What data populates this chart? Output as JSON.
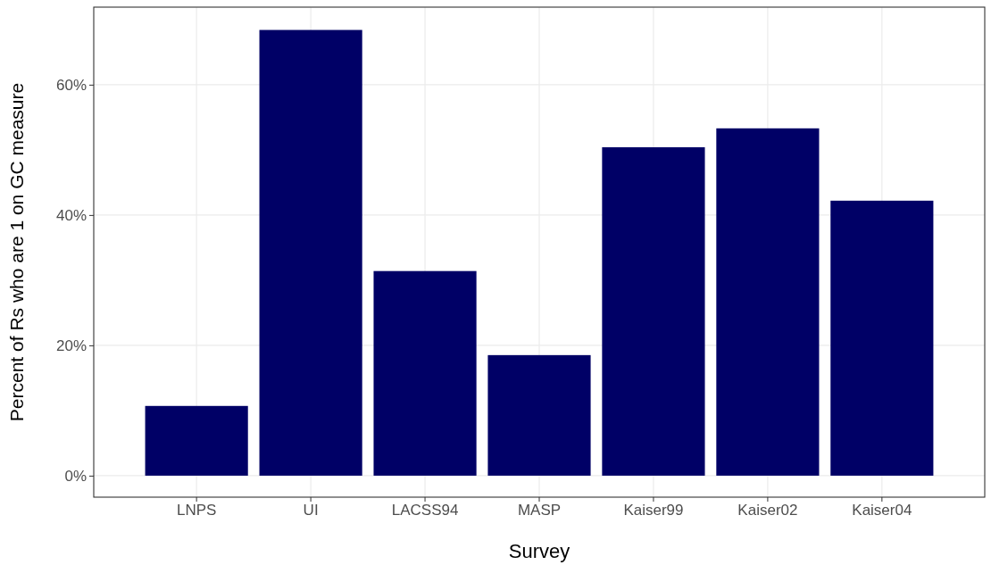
{
  "chart_data": {
    "type": "bar",
    "xlabel": "Survey",
    "ylabel": "Percent of Rs who are 1 on GC measure",
    "categories": [
      "LNPS",
      "UI",
      "LACSS94",
      "MASP",
      "Kaiser99",
      "Kaiser02",
      "Kaiser04"
    ],
    "values": [
      10.7,
      68.4,
      31.4,
      18.5,
      50.4,
      53.3,
      42.2
    ],
    "color": "#000066",
    "ylim": [
      -3.3,
      71.9
    ],
    "yticks": [
      {
        "value": 0,
        "label": "0%"
      },
      {
        "value": 20,
        "label": "20%"
      },
      {
        "value": 40,
        "label": "40%"
      },
      {
        "value": 60,
        "label": "60%"
      }
    ],
    "grid": true
  }
}
